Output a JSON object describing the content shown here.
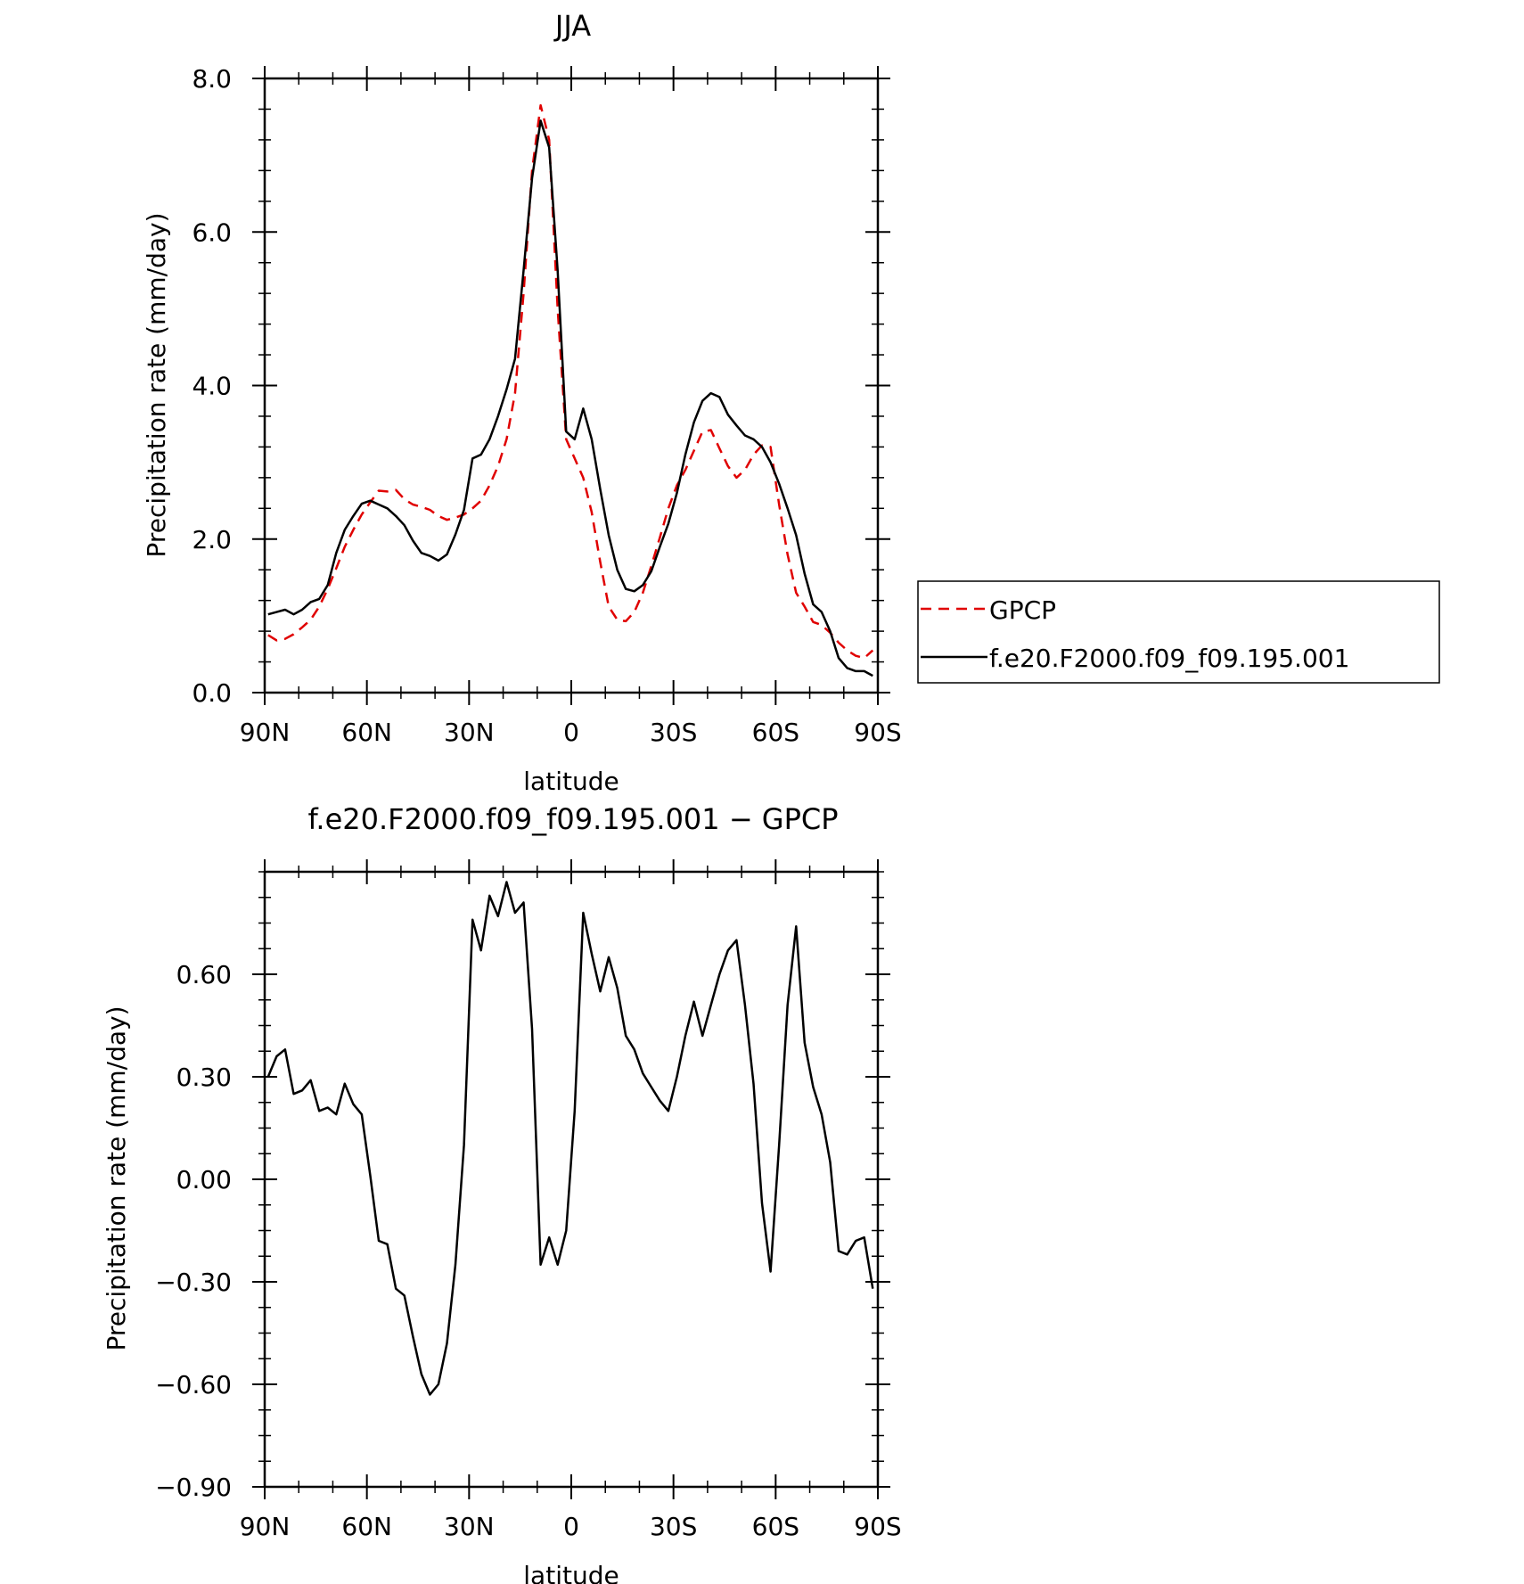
{
  "chart_data": [
    {
      "type": "line",
      "title": "JJA",
      "xlabel": "latitude",
      "ylabel": "Precipitation rate (mm/day)",
      "xlim": [
        90,
        -90
      ],
      "ylim": [
        0,
        8
      ],
      "x_ticks": [
        90,
        60,
        30,
        0,
        -30,
        -60,
        -90
      ],
      "x_tick_labels": [
        "90N",
        "60N",
        "30N",
        "0",
        "30S",
        "60S",
        "90S"
      ],
      "y_ticks": [
        0,
        2,
        4,
        6,
        8
      ],
      "y_tick_labels": [
        "0.0",
        "2.0",
        "4.0",
        "6.0",
        "8.0"
      ],
      "legend_position": "right",
      "series": [
        {
          "name": "GPCP",
          "color": "#e00000",
          "style": "dashed",
          "x": [
            89,
            86.5,
            84,
            81.5,
            79,
            76.5,
            74,
            71.5,
            69,
            66.5,
            64,
            61.5,
            59,
            56.5,
            54,
            51.5,
            49,
            46.5,
            44,
            41.5,
            39,
            36.5,
            34,
            31.5,
            29,
            26.5,
            24,
            21.5,
            19,
            16.5,
            14,
            11.5,
            9,
            6.5,
            4,
            1.5,
            -1,
            -3.5,
            -6,
            -8.5,
            -11,
            -13.5,
            -16,
            -18.5,
            -21,
            -23.5,
            -26,
            -28.5,
            -31,
            -33.5,
            -36,
            -38.5,
            -41,
            -43.5,
            -46,
            -48.5,
            -51,
            -53.5,
            -56,
            -58.5,
            -61,
            -63.5,
            -66,
            -68.5,
            -71,
            -73.5,
            -76,
            -78.5,
            -81,
            -83.5,
            -86,
            -88.5
          ],
          "values": [
            0.75,
            0.68,
            0.7,
            0.76,
            0.85,
            0.95,
            1.12,
            1.35,
            1.62,
            1.9,
            2.12,
            2.32,
            2.48,
            2.63,
            2.62,
            2.64,
            2.52,
            2.45,
            2.42,
            2.38,
            2.3,
            2.25,
            2.28,
            2.32,
            2.4,
            2.5,
            2.7,
            2.95,
            3.3,
            3.9,
            5.2,
            6.8,
            7.65,
            7.2,
            5.0,
            3.3,
            3.05,
            2.8,
            2.35,
            1.7,
            1.12,
            0.95,
            0.93,
            1.05,
            1.3,
            1.65,
            2.02,
            2.4,
            2.7,
            2.9,
            3.15,
            3.4,
            3.42,
            3.18,
            2.95,
            2.8,
            2.9,
            3.1,
            3.22,
            3.2,
            2.45,
            1.8,
            1.3,
            1.12,
            0.92,
            0.88,
            0.78,
            0.65,
            0.55,
            0.48,
            0.45,
            0.55
          ]
        },
        {
          "name": "f.e20.F2000.f09_f09.195.001",
          "color": "#000000",
          "style": "solid",
          "x": [
            89,
            86.5,
            84,
            81.5,
            79,
            76.5,
            74,
            71.5,
            69,
            66.5,
            64,
            61.5,
            59,
            56.5,
            54,
            51.5,
            49,
            46.5,
            44,
            41.5,
            39,
            36.5,
            34,
            31.5,
            29,
            26.5,
            24,
            21.5,
            19,
            16.5,
            14,
            11.5,
            9,
            6.5,
            4,
            1.5,
            -1,
            -3.5,
            -6,
            -8.5,
            -11,
            -13.5,
            -16,
            -18.5,
            -21,
            -23.5,
            -26,
            -28.5,
            -31,
            -33.5,
            -36,
            -38.5,
            -41,
            -43.5,
            -46,
            -48.5,
            -51,
            -53.5,
            -56,
            -58.5,
            -61,
            -63.5,
            -66,
            -68.5,
            -71,
            -73.5,
            -76,
            -78.5,
            -81,
            -83.5,
            -86,
            -88.5
          ],
          "values": [
            1.02,
            1.05,
            1.08,
            1.02,
            1.08,
            1.18,
            1.22,
            1.4,
            1.82,
            2.12,
            2.3,
            2.46,
            2.5,
            2.45,
            2.4,
            2.3,
            2.18,
            1.98,
            1.82,
            1.78,
            1.72,
            1.8,
            2.06,
            2.38,
            3.05,
            3.1,
            3.3,
            3.6,
            3.95,
            4.35,
            5.5,
            6.7,
            7.45,
            7.1,
            5.5,
            3.4,
            3.3,
            3.7,
            3.3,
            2.65,
            2.05,
            1.6,
            1.35,
            1.32,
            1.4,
            1.58,
            1.9,
            2.2,
            2.6,
            3.1,
            3.52,
            3.8,
            3.9,
            3.85,
            3.62,
            3.48,
            3.35,
            3.3,
            3.2,
            3.0,
            2.72,
            2.4,
            2.05,
            1.55,
            1.15,
            1.05,
            0.8,
            0.45,
            0.32,
            0.28,
            0.28,
            0.22
          ]
        }
      ]
    },
    {
      "type": "line",
      "title": "f.e20.F2000.f09_f09.195.001 − GPCP",
      "xlabel": "latitude",
      "ylabel": "Precipitation rate (mm/day)",
      "xlim": [
        90,
        -90
      ],
      "ylim": [
        -0.9,
        0.9
      ],
      "x_ticks": [
        90,
        60,
        30,
        0,
        -30,
        -60,
        -90
      ],
      "x_tick_labels": [
        "90N",
        "60N",
        "30N",
        "0",
        "30S",
        "60S",
        "90S"
      ],
      "y_ticks": [
        -0.9,
        -0.6,
        -0.3,
        0,
        0.3,
        0.6
      ],
      "y_tick_labels": [
        "−0.90",
        "−0.60",
        "−0.30",
        "0.00",
        "0.30",
        "0.60"
      ],
      "series": [
        {
          "color": "#000000",
          "style": "solid",
          "x": [
            89,
            86.5,
            84,
            81.5,
            79,
            76.5,
            74,
            71.5,
            69,
            66.5,
            64,
            61.5,
            59,
            56.5,
            54,
            51.5,
            49,
            46.5,
            44,
            41.5,
            39,
            36.5,
            34,
            31.5,
            29,
            26.5,
            24,
            21.5,
            19,
            16.5,
            14,
            11.5,
            9,
            6.5,
            4,
            1.5,
            -1,
            -3.5,
            -6,
            -8.5,
            -11,
            -13.5,
            -16,
            -18.5,
            -21,
            -23.5,
            -26,
            -28.5,
            -31,
            -33.5,
            -36,
            -38.5,
            -41,
            -43.5,
            -46,
            -48.5,
            -51,
            -53.5,
            -56,
            -58.5,
            -61,
            -63.5,
            -66,
            -68.5,
            -71,
            -73.5,
            -76,
            -78.5,
            -81,
            -83.5,
            -86,
            -88.5
          ],
          "values": [
            0.3,
            0.36,
            0.38,
            0.25,
            0.26,
            0.29,
            0.2,
            0.21,
            0.19,
            0.28,
            0.22,
            0.19,
            0.01,
            -0.18,
            -0.19,
            -0.32,
            -0.34,
            -0.46,
            -0.57,
            -0.63,
            -0.6,
            -0.48,
            -0.25,
            0.1,
            0.76,
            0.67,
            0.83,
            0.77,
            0.87,
            0.78,
            0.81,
            0.44,
            -0.25,
            -0.17,
            -0.25,
            -0.15,
            0.2,
            0.78,
            0.66,
            0.55,
            0.65,
            0.56,
            0.42,
            0.38,
            0.31,
            0.27,
            0.23,
            0.2,
            0.3,
            0.42,
            0.52,
            0.42,
            0.51,
            0.6,
            0.67,
            0.7,
            0.51,
            0.28,
            -0.07,
            -0.27,
            0.1,
            0.51,
            0.74,
            0.4,
            0.27,
            0.19,
            0.05,
            -0.21,
            -0.22,
            -0.18,
            -0.17,
            -0.32
          ]
        }
      ]
    }
  ]
}
